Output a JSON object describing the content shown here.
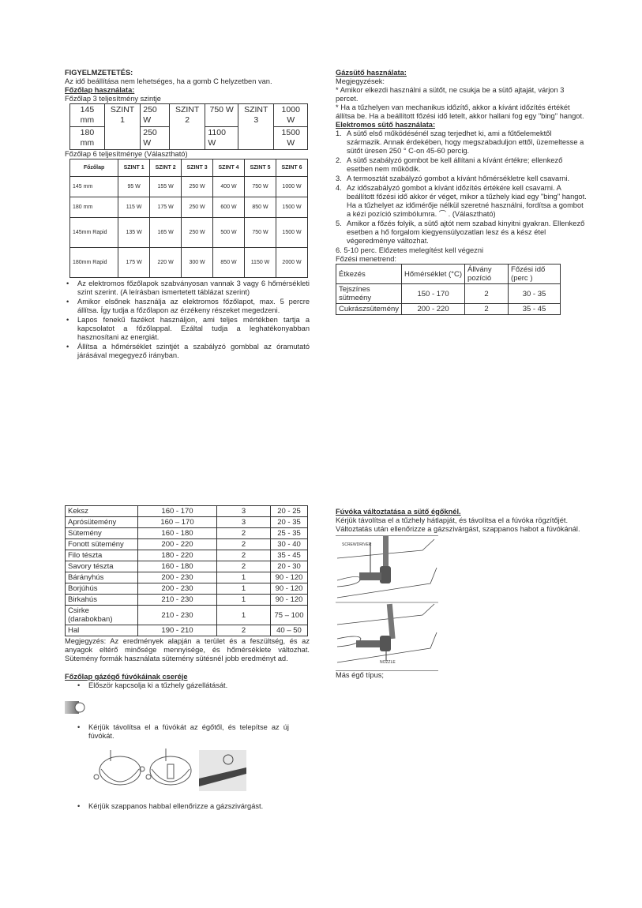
{
  "left_top": {
    "warning_title": "FIGYELMZETETÉS:",
    "warning_text": "Az idő beállítása nem lehetséges, ha a gomb C helyzetben van.",
    "hob_heading": "Főzőlap használata:",
    "hob3_caption": "Főzőlap 3 teljesítmény szintje",
    "hob3_table": {
      "r1": [
        "145 mm",
        "SZINT 1",
        "250 W",
        "SZINT 2",
        "750 W",
        "SZINT 3",
        "1000 W"
      ],
      "r2": [
        "180 mm",
        "250 W",
        "1100 W",
        "1500 W"
      ]
    },
    "hob6_caption": "Főzőlap 6 teljesítménye (Választható)",
    "hob6_table": {
      "headers": [
        "Főzőlap",
        "SZINT 1",
        "SZINT 2",
        "SZINT 3",
        "SZINT 4",
        "SZINT 5",
        "SZINT 6"
      ],
      "rows": [
        [
          "145 mm",
          "95 W",
          "155 W",
          "250 W",
          "400 W",
          "750 W",
          "1000 W"
        ],
        [
          "180 mm",
          "115 W",
          "175 W",
          "250 W",
          "600 W",
          "850 W",
          "1500 W"
        ],
        [
          "145mm Rapid",
          "135 W",
          "165 W",
          "250 W",
          "500 W",
          "750 W",
          "1500 W"
        ],
        [
          "180mm Rapid",
          "175 W",
          "220 W",
          "300 W",
          "850 W",
          "1150 W",
          "2000 W"
        ]
      ]
    },
    "bullets": [
      "Az elektromos főzőlapok szabványosan vannak 3 vagy 6 hőmérsékleti szint szerint. (A leírásban ismertetett táblázat szerint)",
      "Amikor elsőnek használja az elektromos főzőlapot, max. 5 percre állítsa. Így tudja a főzőlapon az érzékeny részeket megedzeni.",
      "Lapos fenekű fazékot használjon, ami teljes mértékben tartja a kapcsolatot a főzőlappal. Ezáltal tudja a leghatékonyabban hasznosítani az energiát.",
      "Állítsa a hőmérséklet szintjét a szabályzó gombbal az óramutató járásával megegyező irányban."
    ]
  },
  "right_top": {
    "gas_oven_heading": "Gázsütő használata:",
    "notes_label": "Megjegyzések:",
    "notes": [
      "* Amikor elkezdi használni a sütőt, ne csukja be a sütő ajtaját, várjon 3 percet.",
      "* Ha a tűzhelyen van mechanikus időzítő, akkor a kívánt időzítés értékét állítsa be. Ha a beállított főzési idő letelt, akkor hallani fog egy \"bing\" hangot."
    ],
    "electric_oven_heading": "Elektromos sütő használata:",
    "steps": [
      {
        "n": "1.",
        "text": "A sütő első működésénél szag terjedhet ki, ami a fűtőelemektől származik. Annak érdekében, hogy megszabaduljon ettől, üzemeltesse a sütőt üresen 250 ° C-on 45-60 percig."
      },
      {
        "n": "2.",
        "text": "A sütő szabályzó gombot be kell állítani a kívánt értékre; ellenkező esetben nem működik."
      },
      {
        "n": "3.",
        "text": "A termosztát szabályzó gombot a kívánt hőmérsékletre kell csavarni."
      },
      {
        "n": "4.",
        "text": "Az időszabályzó gombot a kívánt időzítés értékére kell csavarni. A beállított főzési idő akkor ér véget, mikor a tűzhely kiad egy \"bing\" hangot. Ha a tűzhelyet az időmérője nélkül szeretné használni, fordítsa a gombot a kézi pozíció szimbólumra. ⌒ . (Választható)"
      },
      {
        "n": "5.",
        "text": "Amikor a főzés folyik, a sütő ajtót nem szabad kinyitni gyakran. Ellenkező esetben a hő forgalom kiegyensúlyozatlan lesz és a kész étel végeredménye változhat."
      }
    ],
    "step6": "6. 5-10 perc. Előzetes melegítést kell végezni",
    "schedule_caption": "Főzési menetrend:",
    "schedule_table": {
      "headers": [
        "Étkezés",
        "Hőmérséklet (°C)",
        "Állvány pozíció",
        "Főzési idő (perc )"
      ],
      "rows": [
        [
          "Tejszínes sütmeény",
          "150 - 170",
          "2",
          "30 - 35"
        ],
        [
          "Cukrászsütemény",
          "200 - 220",
          "2",
          "35 - 45"
        ]
      ]
    }
  },
  "left_bottom": {
    "schedule_rows": [
      [
        "Keksz",
        "160 - 170",
        "3",
        "20 - 25"
      ],
      [
        "Aprósütemény",
        "160 – 170",
        "3",
        "20 - 35"
      ],
      [
        "Sütemény",
        "160 - 180",
        "2",
        "25 - 35"
      ],
      [
        "Fonott sütemény",
        "200 - 220",
        "2",
        "30 - 40"
      ],
      [
        "Filo tészta",
        "180 - 220",
        "2",
        "35 - 45"
      ],
      [
        "Savory tészta",
        "160 - 180",
        "2",
        "20 - 30"
      ],
      [
        "Bárányhús",
        "200 - 230",
        "1",
        "90 - 120"
      ],
      [
        "Borjúhús",
        "200 - 230",
        "1",
        "90 - 120"
      ],
      [
        "Birkahús",
        "210 - 230",
        "1",
        "90 - 120"
      ],
      [
        "Csirke (darabokban)",
        "210 - 230",
        "1",
        "75 – 100"
      ],
      [
        "Hal",
        "190 - 210",
        "2",
        "40 – 50"
      ]
    ],
    "note": "Megjegyzés: Az eredmények alapján a terület és a feszültség, és az anyagok eltérő minősége mennyisége, és hőmérséklete változhat. Sütemény formák használata sütemény sütésnél jobb eredményt ad.",
    "nozzle_heading": "Főzőlap gázégő fúvókáinak cseréje",
    "bullets": [
      "Először kapcsolja ki a tűzhely gázellátását.",
      "Kérjük távolítsa el a fúvókát az égőtől, és telepítse az új fúvókát.",
      "Kérjük szappanos habbal ellenőrizze a gázszivárgást."
    ]
  },
  "right_bottom": {
    "heading": "Fúvóka változtatása a sütő égőknél.",
    "text": "Kérjük távolítsa el a tűzhely hátlapját, és távolítsa el a fúvóka rögzítőjét. Változtatás után ellenőrizze a gázszivárgást, szappanos habot a fúvókánál.",
    "label_screwdriver": "SCREWDRIVER",
    "label_nozzle": "NOZZLE",
    "other_burner": "Más égő típus;"
  }
}
